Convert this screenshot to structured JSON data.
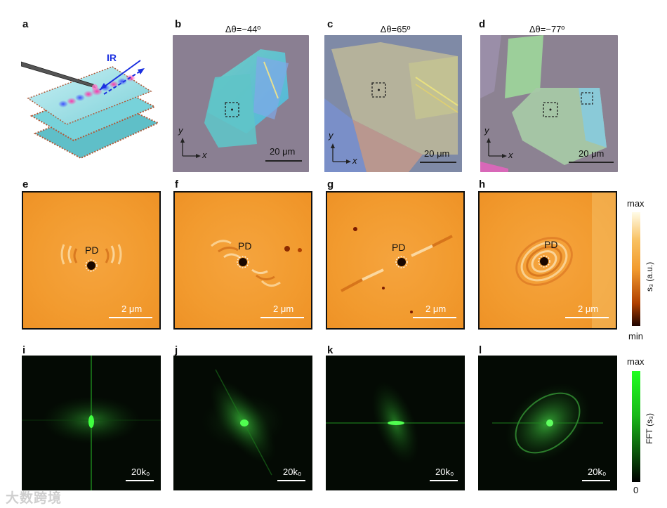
{
  "panels": {
    "a": {
      "label": "a",
      "ir_label": "IR"
    },
    "b": {
      "label": "b",
      "title": "Δθ=−44º",
      "scale": "20 μm",
      "axis_x": "x",
      "axis_y": "y"
    },
    "c": {
      "label": "c",
      "title": "Δθ=65º",
      "scale": "20 μm",
      "axis_x": "x",
      "axis_y": "y"
    },
    "d": {
      "label": "d",
      "title": "Δθ=−77º",
      "scale": "20 μm",
      "axis_x": "x",
      "axis_y": "y"
    },
    "e": {
      "label": "e",
      "pd": "PD",
      "scale": "2 μm"
    },
    "f": {
      "label": "f",
      "pd": "PD",
      "scale": "2 μm"
    },
    "g": {
      "label": "g",
      "pd": "PD",
      "scale": "2 μm"
    },
    "h": {
      "label": "h",
      "pd": "PD",
      "scale": "2 μm"
    },
    "i": {
      "label": "i",
      "scale": "20k₀"
    },
    "j": {
      "label": "j",
      "scale": "20k₀"
    },
    "k": {
      "label": "k",
      "scale": "20k₀"
    },
    "l": {
      "label": "l",
      "scale": "20k₀"
    }
  },
  "colorbar_nf": {
    "max": "max",
    "min": "min",
    "label": "s₃ (a.u.)"
  },
  "colorbar_fft": {
    "max": "max",
    "min": "0",
    "label": "FFT (s₃)"
  },
  "watermark": "大数跨境",
  "colors": {
    "nf_orange": "#f29b2f",
    "fft_green": "#22e022",
    "optical_bg": "#8a7f92"
  }
}
